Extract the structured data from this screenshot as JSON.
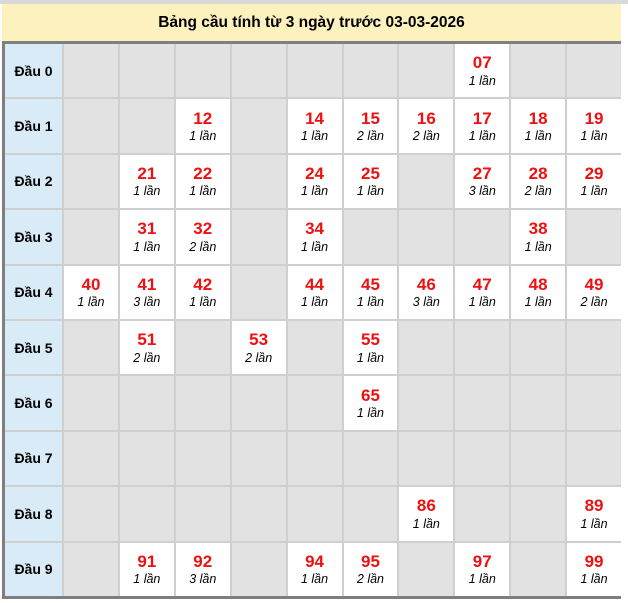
{
  "title": "Bảng cầu tính từ 3 ngày trước 03-03-2026",
  "colors": {
    "title_bg": "#fdf1bd",
    "label_bg": "#d9ebf7",
    "empty_cell_bg": "#e2e2e2",
    "number_color": "#ee1111",
    "table_border": "#7f7f7f"
  },
  "table": {
    "column_count": 10,
    "rows": [
      {
        "label": "Đầu 0",
        "cells": [
          null,
          null,
          null,
          null,
          null,
          null,
          null,
          {
            "number": "07",
            "count": "1 lần"
          },
          null,
          null
        ]
      },
      {
        "label": "Đầu 1",
        "cells": [
          null,
          null,
          {
            "number": "12",
            "count": "1 lần"
          },
          null,
          {
            "number": "14",
            "count": "1 lần"
          },
          {
            "number": "15",
            "count": "2 lần"
          },
          {
            "number": "16",
            "count": "2 lần"
          },
          {
            "number": "17",
            "count": "1 lần"
          },
          {
            "number": "18",
            "count": "1 lần"
          },
          {
            "number": "19",
            "count": "1 lần"
          }
        ]
      },
      {
        "label": "Đầu 2",
        "cells": [
          null,
          {
            "number": "21",
            "count": "1 lần"
          },
          {
            "number": "22",
            "count": "1 lần"
          },
          null,
          {
            "number": "24",
            "count": "1 lần"
          },
          {
            "number": "25",
            "count": "1 lần"
          },
          null,
          {
            "number": "27",
            "count": "3 lần"
          },
          {
            "number": "28",
            "count": "2 lần"
          },
          {
            "number": "29",
            "count": "1 lần"
          }
        ]
      },
      {
        "label": "Đầu 3",
        "cells": [
          null,
          {
            "number": "31",
            "count": "1 lần"
          },
          {
            "number": "32",
            "count": "2 lần"
          },
          null,
          {
            "number": "34",
            "count": "1 lần"
          },
          null,
          null,
          null,
          {
            "number": "38",
            "count": "1 lần"
          },
          null
        ]
      },
      {
        "label": "Đầu 4",
        "cells": [
          {
            "number": "40",
            "count": "1 lần"
          },
          {
            "number": "41",
            "count": "3 lần"
          },
          {
            "number": "42",
            "count": "1 lần"
          },
          null,
          {
            "number": "44",
            "count": "1 lần"
          },
          {
            "number": "45",
            "count": "1 lần"
          },
          {
            "number": "46",
            "count": "3 lần"
          },
          {
            "number": "47",
            "count": "1 lần"
          },
          {
            "number": "48",
            "count": "1 lần"
          },
          {
            "number": "49",
            "count": "2 lần"
          }
        ]
      },
      {
        "label": "Đầu 5",
        "cells": [
          null,
          {
            "number": "51",
            "count": "2 lần"
          },
          null,
          {
            "number": "53",
            "count": "2 lần"
          },
          null,
          {
            "number": "55",
            "count": "1 lần"
          },
          null,
          null,
          null,
          null
        ]
      },
      {
        "label": "Đầu 6",
        "cells": [
          null,
          null,
          null,
          null,
          null,
          {
            "number": "65",
            "count": "1 lần"
          },
          null,
          null,
          null,
          null
        ]
      },
      {
        "label": "Đầu 7",
        "cells": [
          null,
          null,
          null,
          null,
          null,
          null,
          null,
          null,
          null,
          null
        ]
      },
      {
        "label": "Đầu 8",
        "cells": [
          null,
          null,
          null,
          null,
          null,
          null,
          {
            "number": "86",
            "count": "1 lần"
          },
          null,
          null,
          {
            "number": "89",
            "count": "1 lần"
          }
        ]
      },
      {
        "label": "Đầu 9",
        "cells": [
          null,
          {
            "number": "91",
            "count": "1 lần"
          },
          {
            "number": "92",
            "count": "3 lần"
          },
          null,
          {
            "number": "94",
            "count": "1 lần"
          },
          {
            "number": "95",
            "count": "2 lần"
          },
          null,
          {
            "number": "97",
            "count": "1 lần"
          },
          null,
          {
            "number": "99",
            "count": "1 lần"
          }
        ]
      }
    ]
  }
}
